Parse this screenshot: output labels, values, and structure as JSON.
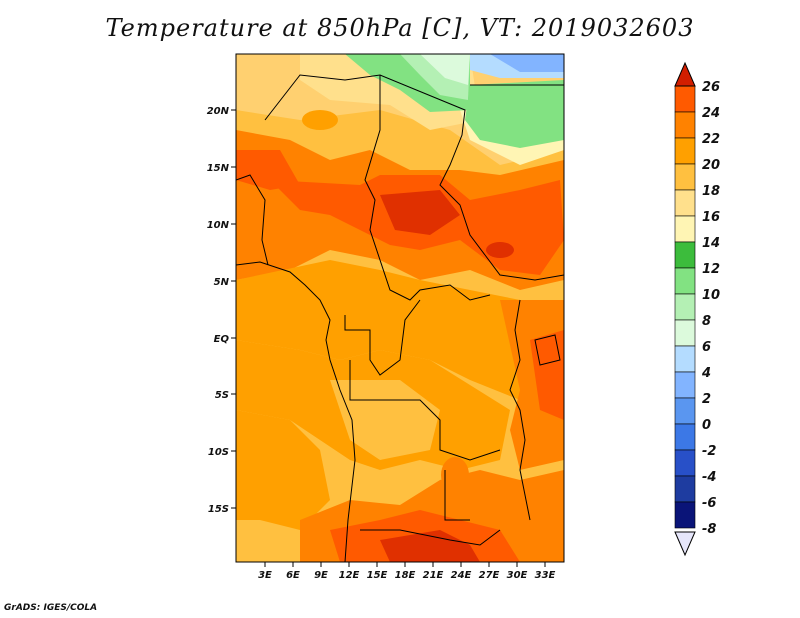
{
  "title": "Temperature at 850hPa [C], VT: 2019032603",
  "credit": "GrADS: IGES/COLA",
  "map": {
    "lon_ticks": [
      "3E",
      "6E",
      "9E",
      "12E",
      "15E",
      "18E",
      "21E",
      "24E",
      "27E",
      "30E",
      "33E"
    ],
    "lat_ticks": [
      "20N",
      "15N",
      "10N",
      "5N",
      "EQ",
      "5S",
      "10S",
      "15S"
    ]
  },
  "colorbar": {
    "labels": [
      "26",
      "24",
      "22",
      "20",
      "18",
      "16",
      "14",
      "12",
      "10",
      "8",
      "6",
      "4",
      "2",
      "0",
      "-2",
      "-4",
      "-6",
      "-8"
    ],
    "colors": [
      "#e03000",
      "#ff5a00",
      "#ff8200",
      "#ffa000",
      "#ffc040",
      "#ffe08c",
      "#fff5b4",
      "#3cbc3c",
      "#82e282",
      "#b4f0b4",
      "#dcfadc",
      "#b4dcff",
      "#82b4ff",
      "#5a96f0",
      "#3c78e6",
      "#2850c8",
      "#1e3ca0",
      "#0a1478"
    ],
    "over_color": "#d21e00",
    "under_color": "#e6e6fa"
  }
}
